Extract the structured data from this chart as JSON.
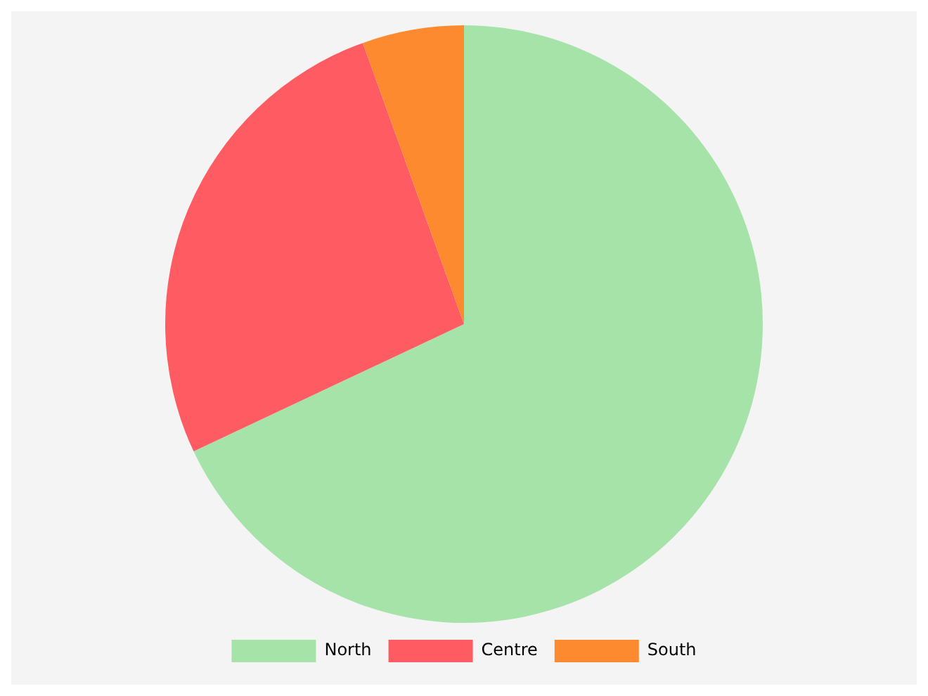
{
  "chart_data": {
    "type": "pie",
    "categories": [
      "North",
      "Centre",
      "South"
    ],
    "values": [
      68,
      26.5,
      5.5
    ],
    "colors": [
      "#a6e3a9",
      "#fe5b62",
      "#fe8a30"
    ],
    "legend": "bottom"
  }
}
